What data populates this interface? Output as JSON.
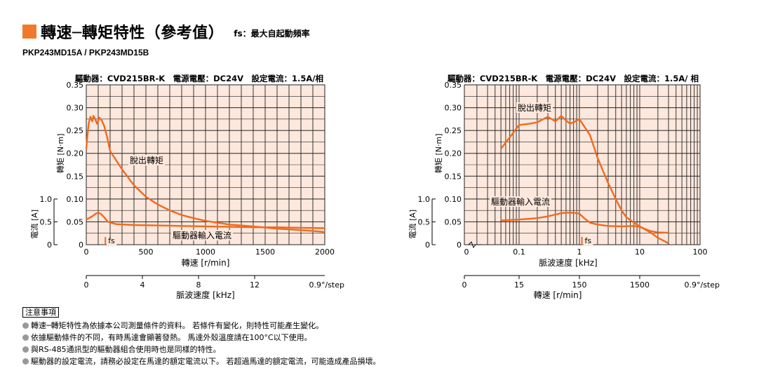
{
  "header": {
    "title": "轉速─轉矩特性（參考值）",
    "fs_note": "fs：最大自起動頻率",
    "model": "PKP243MD15A / PKP243MD15B"
  },
  "colors": {
    "accent": "#f07a2a",
    "plot_bg": "#fde8dd",
    "curve": "#f06a1e",
    "grid": "#222222"
  },
  "chart_data": [
    {
      "type": "line",
      "driver_spec": "驅動器：CVD215BR-K　電源電壓：DC24V　設定電流：1.5A/相",
      "ylabel": "轉矩 [N·m]",
      "ylabel2": "電流 [A]",
      "xlabel": "轉速 [r/min]",
      "xlabel2": "脈波速度 [kHz]",
      "x_unit": "r/min",
      "xlim": [
        0,
        2000
      ],
      "ylim": [
        0,
        0.35
      ],
      "y_ticks": [
        "0",
        "0.05",
        "0.10",
        "0.15",
        "0.20",
        "0.25",
        "0.30",
        "0.35"
      ],
      "x_ticks": [
        "0",
        "500",
        "1000",
        "1500",
        "2000"
      ],
      "current_ticks": [
        "0",
        "0.5",
        "1.0"
      ],
      "x2_ticks": [
        "0",
        "4",
        "8",
        "12"
      ],
      "x2_suffix": "0.9°/step",
      "fs_label": "fs",
      "fs_x": 160,
      "grid": true,
      "series": [
        {
          "name": "脫出轉矩",
          "x": [
            0,
            10,
            20,
            35,
            50,
            60,
            75,
            90,
            110,
            130,
            150,
            175,
            200,
            250,
            300,
            400,
            500,
            600,
            700,
            800,
            900,
            1000,
            1100,
            1200,
            1400,
            1600,
            1800,
            2000
          ],
          "y": [
            0.21,
            0.24,
            0.265,
            0.28,
            0.27,
            0.282,
            0.275,
            0.265,
            0.278,
            0.272,
            0.26,
            0.235,
            0.205,
            0.185,
            0.165,
            0.13,
            0.105,
            0.088,
            0.075,
            0.065,
            0.058,
            0.052,
            0.048,
            0.044,
            0.04,
            0.035,
            0.032,
            0.028
          ]
        },
        {
          "name": "驅動器輸入電流",
          "x": [
            0,
            50,
            80,
            100,
            120,
            150,
            180,
            250,
            400,
            600,
            800,
            1000,
            1200,
            1400,
            1600,
            1800,
            2000
          ],
          "y": [
            0.055,
            0.062,
            0.068,
            0.07,
            0.068,
            0.06,
            0.05,
            0.045,
            0.043,
            0.042,
            0.041,
            0.04,
            0.039,
            0.038,
            0.038,
            0.037,
            0.036
          ]
        }
      ]
    },
    {
      "type": "line",
      "driver_spec": "驅動器：CVD215BR-K　電源電壓：DC24V　設定電流：1.5A/ 相",
      "ylabel": "轉矩 [N·m]",
      "ylabel2": "電流 [A]",
      "xlabel": "脈波速度 [kHz]",
      "xlabel2": "轉速 [r/min]",
      "x_unit": "kHz",
      "x_scale": "log",
      "xlim": [
        0.01,
        100
      ],
      "ylim": [
        0,
        0.35
      ],
      "y_ticks": [
        "0",
        "0.05",
        "0.10",
        "0.15",
        "0.20",
        "0.25",
        "0.30",
        "0.35"
      ],
      "x_ticks": [
        "0",
        "0.1",
        "1",
        "10",
        "100"
      ],
      "current_ticks": [
        "0",
        "0.5",
        "1.0"
      ],
      "x2_ticks": [
        "0",
        "15",
        "150",
        "1500"
      ],
      "x2_suffix": "0.9°/step",
      "fs_label": "fs",
      "fs_x": 1.1,
      "grid": true,
      "series": [
        {
          "name": "脫出轉矩",
          "x": [
            0.05,
            0.07,
            0.1,
            0.15,
            0.2,
            0.3,
            0.4,
            0.5,
            0.6,
            0.7,
            0.8,
            1,
            1.5,
            2,
            3,
            4,
            5,
            6,
            8,
            10,
            15,
            20,
            30
          ],
          "y": [
            0.21,
            0.235,
            0.262,
            0.265,
            0.268,
            0.28,
            0.27,
            0.282,
            0.272,
            0.265,
            0.268,
            0.275,
            0.24,
            0.19,
            0.135,
            0.1,
            0.075,
            0.06,
            0.048,
            0.04,
            0.027,
            0.015,
            0.003
          ]
        },
        {
          "name": "驅動器輸入電流",
          "x": [
            0.05,
            0.1,
            0.2,
            0.3,
            0.4,
            0.5,
            0.6,
            0.8,
            1,
            1.2,
            1.5,
            2,
            3,
            5,
            8,
            10,
            15,
            20,
            30
          ],
          "y": [
            0.053,
            0.055,
            0.058,
            0.062,
            0.066,
            0.069,
            0.07,
            0.07,
            0.068,
            0.058,
            0.048,
            0.044,
            0.041,
            0.04,
            0.041,
            0.039,
            0.03,
            0.027,
            0.026
          ]
        }
      ]
    }
  ]
}
